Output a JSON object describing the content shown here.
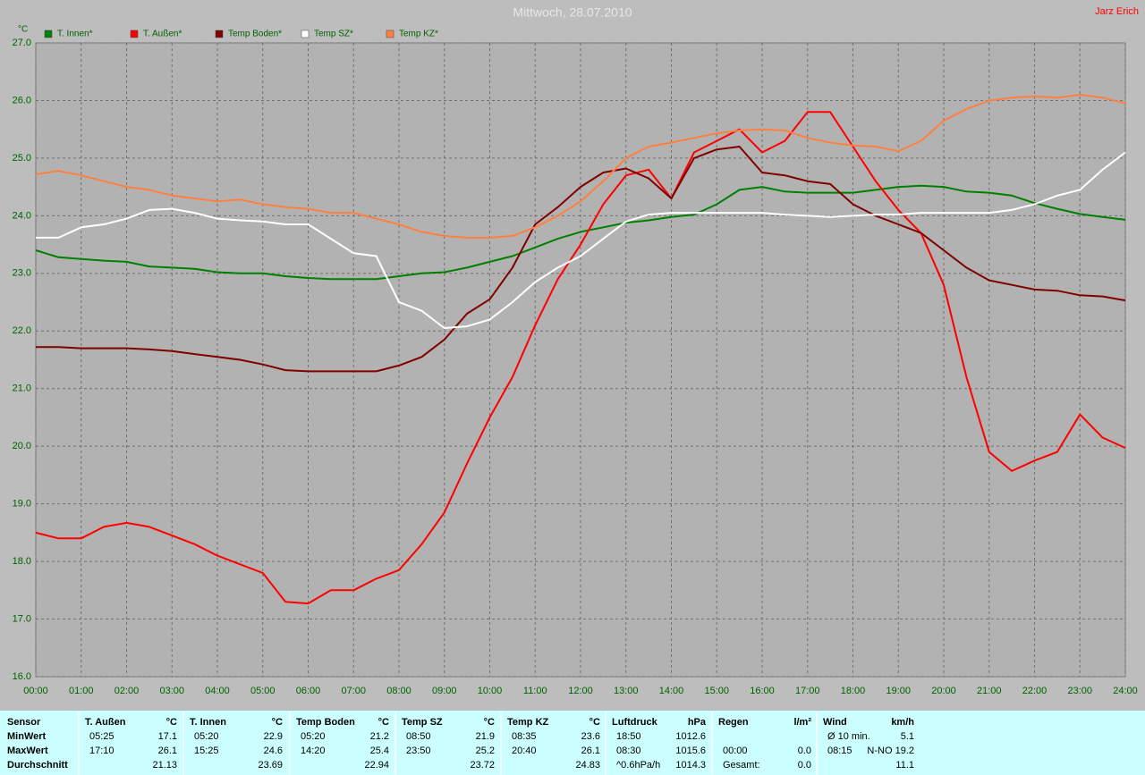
{
  "chart_data": {
    "type": "line",
    "title": "Mittwoch, 28.07.2010",
    "author": "Jarz Erich",
    "y_label": "°C",
    "grid": true,
    "xlim": [
      0,
      24
    ],
    "ylim": [
      16,
      27
    ],
    "xticks": [
      {
        "value": 0,
        "label": "00:00"
      },
      {
        "value": 1,
        "label": "01:00"
      },
      {
        "value": 2,
        "label": "02:00"
      },
      {
        "value": 3,
        "label": "03:00"
      },
      {
        "value": 4,
        "label": "04:00"
      },
      {
        "value": 5,
        "label": "05:00"
      },
      {
        "value": 6,
        "label": "06:00"
      },
      {
        "value": 7,
        "label": "07:00"
      },
      {
        "value": 8,
        "label": "08:00"
      },
      {
        "value": 9,
        "label": "09:00"
      },
      {
        "value": 10,
        "label": "10:00"
      },
      {
        "value": 11,
        "label": "11:00"
      },
      {
        "value": 12,
        "label": "12:00"
      },
      {
        "value": 13,
        "label": "13:00"
      },
      {
        "value": 14,
        "label": "14:00"
      },
      {
        "value": 15,
        "label": "15:00"
      },
      {
        "value": 16,
        "label": "16:00"
      },
      {
        "value": 17,
        "label": "17:00"
      },
      {
        "value": 18,
        "label": "18:00"
      },
      {
        "value": 19,
        "label": "19:00"
      },
      {
        "value": 20,
        "label": "20:00"
      },
      {
        "value": 21,
        "label": "21:00"
      },
      {
        "value": 22,
        "label": "22:00"
      },
      {
        "value": 23,
        "label": "23:00"
      },
      {
        "value": 24,
        "label": "24:00"
      }
    ],
    "yticks": [
      {
        "value": 16,
        "label": "16.0"
      },
      {
        "value": 17,
        "label": "17.0"
      },
      {
        "value": 18,
        "label": "18.0"
      },
      {
        "value": 19,
        "label": "19.0"
      },
      {
        "value": 20,
        "label": "20.0"
      },
      {
        "value": 21,
        "label": "21.0"
      },
      {
        "value": 22,
        "label": "22.0"
      },
      {
        "value": 23,
        "label": "23.0"
      },
      {
        "value": 24,
        "label": "24.0"
      },
      {
        "value": 25,
        "label": "25.0"
      },
      {
        "value": 26,
        "label": "26.0"
      },
      {
        "value": 27,
        "label": "27.0"
      }
    ],
    "x": [
      0,
      0.5,
      1,
      1.5,
      2,
      2.5,
      3,
      3.5,
      4,
      4.5,
      5,
      5.5,
      6,
      6.5,
      7,
      7.5,
      8,
      8.5,
      9,
      9.5,
      10,
      10.5,
      11,
      11.5,
      12,
      12.5,
      13,
      13.5,
      14,
      14.5,
      15,
      15.5,
      16,
      16.5,
      17,
      17.5,
      18,
      18.5,
      19,
      19.5,
      20,
      20.5,
      21,
      21.5,
      22,
      22.5,
      23,
      23.5,
      24
    ],
    "series": [
      {
        "name": "T. Innen*",
        "color": "#008000",
        "values": [
          23.4,
          23.28,
          23.25,
          23.22,
          23.2,
          23.12,
          23.1,
          23.08,
          23.02,
          23.0,
          23.0,
          22.95,
          22.92,
          22.9,
          22.9,
          22.9,
          22.95,
          23.0,
          23.02,
          23.1,
          23.2,
          23.3,
          23.45,
          23.6,
          23.72,
          23.8,
          23.88,
          23.92,
          23.98,
          24.02,
          24.2,
          24.45,
          24.5,
          24.42,
          24.4,
          24.4,
          24.4,
          24.45,
          24.5,
          24.52,
          24.5,
          24.42,
          24.4,
          24.35,
          24.22,
          24.12,
          24.03,
          23.98,
          23.93
        ]
      },
      {
        "name": "T. Außen*",
        "color": "#ff0000",
        "values": [
          18.5,
          18.4,
          18.4,
          18.6,
          18.67,
          18.6,
          18.45,
          18.3,
          18.1,
          17.95,
          17.8,
          17.3,
          17.27,
          17.5,
          17.5,
          17.7,
          17.85,
          18.3,
          18.85,
          19.7,
          20.5,
          21.2,
          22.1,
          22.9,
          23.5,
          24.2,
          24.7,
          24.8,
          24.3,
          25.1,
          25.3,
          25.5,
          25.1,
          25.3,
          25.8,
          25.8,
          25.2,
          24.6,
          24.1,
          23.7,
          22.8,
          21.2,
          19.9,
          19.57,
          19.75,
          19.9,
          20.55,
          20.15,
          19.97
        ]
      },
      {
        "name": "Temp Boden*",
        "color": "#800000",
        "values": [
          21.72,
          21.72,
          21.7,
          21.7,
          21.7,
          21.68,
          21.65,
          21.6,
          21.55,
          21.5,
          21.42,
          21.32,
          21.3,
          21.3,
          21.3,
          21.3,
          21.4,
          21.55,
          21.85,
          22.3,
          22.55,
          23.1,
          23.85,
          24.15,
          24.5,
          24.75,
          24.82,
          24.65,
          24.3,
          25.0,
          25.15,
          25.2,
          24.75,
          24.7,
          24.6,
          24.55,
          24.2,
          24.0,
          23.85,
          23.7,
          23.4,
          23.1,
          22.88,
          22.8,
          22.72,
          22.7,
          22.62,
          22.6,
          22.53
        ]
      },
      {
        "name": "Temp SZ*",
        "color": "#ffffff",
        "values": [
          23.62,
          23.62,
          23.8,
          23.85,
          23.95,
          24.1,
          24.12,
          24.05,
          23.95,
          23.92,
          23.9,
          23.85,
          23.85,
          23.6,
          23.35,
          23.3,
          22.5,
          22.35,
          22.05,
          22.08,
          22.2,
          22.5,
          22.85,
          23.1,
          23.3,
          23.6,
          23.9,
          24.02,
          24.05,
          24.05,
          24.05,
          24.05,
          24.05,
          24.02,
          24.0,
          23.98,
          24.0,
          24.02,
          24.02,
          24.05,
          24.05,
          24.05,
          24.05,
          24.1,
          24.2,
          24.35,
          24.45,
          24.8,
          25.1
        ]
      },
      {
        "name": "Temp KZ*",
        "color": "#ff8040",
        "values": [
          24.72,
          24.78,
          24.7,
          24.6,
          24.5,
          24.45,
          24.35,
          24.3,
          24.25,
          24.28,
          24.2,
          24.15,
          24.12,
          24.05,
          24.05,
          23.95,
          23.85,
          23.72,
          23.65,
          23.62,
          23.62,
          23.65,
          23.8,
          24.0,
          24.25,
          24.6,
          25.0,
          25.2,
          25.27,
          25.35,
          25.43,
          25.48,
          25.5,
          25.48,
          25.35,
          25.27,
          25.22,
          25.2,
          25.12,
          25.3,
          25.65,
          25.85,
          26.0,
          26.05,
          26.07,
          26.05,
          26.1,
          26.05,
          25.95
        ]
      }
    ]
  },
  "table": {
    "row_labels": [
      "Sensor",
      "MinWert",
      "MaxWert",
      "Durchschnitt"
    ],
    "groups": [
      {
        "title": "T. Außen",
        "unit": "°C",
        "rows": [
          [
            "05:25",
            "17.1"
          ],
          [
            "17:10",
            "26.1"
          ],
          [
            "21.13"
          ]
        ]
      },
      {
        "title": "T. Innen",
        "unit": "°C",
        "rows": [
          [
            "05:20",
            "22.9"
          ],
          [
            "15:25",
            "24.6"
          ],
          [
            "23.69"
          ]
        ]
      },
      {
        "title": "Temp Boden",
        "unit": "°C",
        "rows": [
          [
            "05:20",
            "21.2"
          ],
          [
            "14:20",
            "25.4"
          ],
          [
            "22.94"
          ]
        ]
      },
      {
        "title": "Temp SZ",
        "unit": "°C",
        "rows": [
          [
            "08:50",
            "21.9"
          ],
          [
            "23:50",
            "25.2"
          ],
          [
            "23.72"
          ]
        ]
      },
      {
        "title": "Temp KZ",
        "unit": "°C",
        "rows": [
          [
            "08:35",
            "23.6"
          ],
          [
            "20:40",
            "26.1"
          ],
          [
            "24.83"
          ]
        ]
      },
      {
        "title": "Luftdruck",
        "unit": "hPa",
        "rows": [
          [
            "18:50",
            "1012.6"
          ],
          [
            "08:30",
            "1015.6"
          ],
          [
            "^0.6hPa/h",
            "1014.3"
          ]
        ]
      },
      {
        "title": "Regen",
        "unit": "l/m²",
        "rows": [
          [],
          [
            "00:00",
            "0.0"
          ],
          [
            "Gesamt:",
            "0.0"
          ]
        ]
      },
      {
        "title": "Wind",
        "unit": "km/h",
        "rows": [
          [
            "Ø 10 min.",
            "5.1"
          ],
          [
            "08:15",
            "N-NO 19.2"
          ],
          [
            "11.1"
          ]
        ]
      }
    ]
  }
}
